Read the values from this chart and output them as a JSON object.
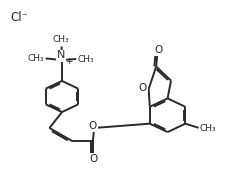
{
  "bg_color": "#ffffff",
  "line_color": "#2a2a2a",
  "lw": 1.4,
  "dbo": 0.008,
  "figsize": [
    2.28,
    1.93
  ],
  "dpi": 100,
  "xlim": [
    0.0,
    1.0
  ],
  "ylim": [
    1.05,
    0.02
  ]
}
